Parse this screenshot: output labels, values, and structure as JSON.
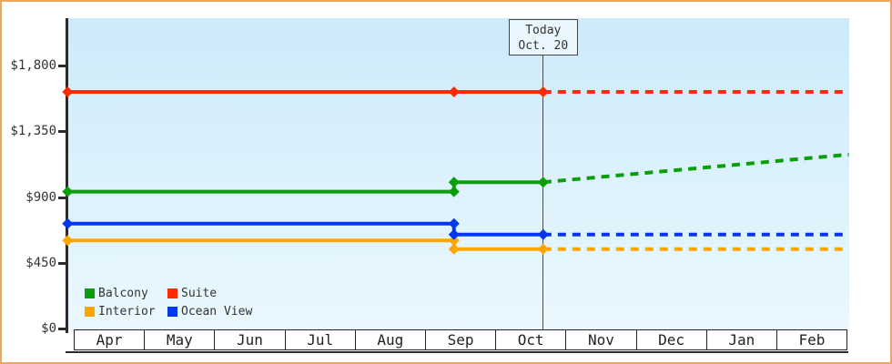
{
  "window": {
    "frame_color": "#eda55f",
    "background": "#ffffff"
  },
  "chart_data": {
    "type": "line",
    "title": "",
    "x_unit": "month_cell_index",
    "x_categories": [
      "Apr",
      "May",
      "Jun",
      "Jul",
      "Aug",
      "Sep",
      "Oct",
      "Nov",
      "Dec",
      "Jan",
      "Feb"
    ],
    "y_ticks": [
      {
        "value": 0,
        "label": "$0"
      },
      {
        "value": 450,
        "label": "$450"
      },
      {
        "value": 900,
        "label": "$900"
      },
      {
        "value": 1350,
        "label": "$1,350"
      },
      {
        "value": 1800,
        "label": "$1,800"
      }
    ],
    "ylim": [
      0,
      2130
    ],
    "grid": "off",
    "plot_background": {
      "top": "#cdeafa",
      "bottom": "#eaf8fe"
    },
    "today_annotation": {
      "line1": "Today",
      "line2": "Oct. 20",
      "month_index": 6,
      "month_fraction": 0.67
    },
    "forecast_style": "dashed-after-today",
    "series": [
      {
        "name": "Balcony",
        "color": "#0a9e0a",
        "solid": [
          [
            -0.1,
            940
          ],
          [
            5.4,
            940
          ],
          [
            5.4,
            1005
          ],
          [
            6.67,
            1005
          ]
        ],
        "dashed": [
          [
            6.67,
            1005
          ],
          [
            11.02,
            1195
          ]
        ],
        "markers": [
          [
            -0.1,
            940
          ],
          [
            5.4,
            940
          ],
          [
            5.4,
            1005
          ],
          [
            6.67,
            1005
          ]
        ]
      },
      {
        "name": "Suite",
        "color": "#ff2b00",
        "solid": [
          [
            -0.1,
            1625
          ],
          [
            6.67,
            1625
          ]
        ],
        "dashed": [
          [
            6.67,
            1625
          ],
          [
            11.02,
            1625
          ]
        ],
        "markers": [
          [
            -0.1,
            1625
          ],
          [
            5.4,
            1625
          ],
          [
            6.67,
            1625
          ]
        ]
      },
      {
        "name": "Interior",
        "color": "#ffa500",
        "solid": [
          [
            -0.1,
            605
          ],
          [
            5.4,
            605
          ],
          [
            5.4,
            545
          ],
          [
            6.67,
            545
          ]
        ],
        "dashed": [
          [
            6.67,
            545
          ],
          [
            11.02,
            545
          ]
        ],
        "markers": [
          [
            -0.1,
            605
          ],
          [
            5.4,
            605
          ],
          [
            5.4,
            545
          ],
          [
            6.67,
            545
          ]
        ]
      },
      {
        "name": "Ocean View",
        "color": "#0437f0",
        "solid": [
          [
            -0.1,
            720
          ],
          [
            5.4,
            720
          ],
          [
            5.4,
            645
          ],
          [
            6.67,
            645
          ]
        ],
        "dashed": [
          [
            6.67,
            645
          ],
          [
            11.02,
            645
          ]
        ],
        "markers": [
          [
            -0.1,
            720
          ],
          [
            5.4,
            720
          ],
          [
            5.4,
            645
          ],
          [
            6.67,
            645
          ]
        ]
      }
    ],
    "legend": {
      "position": "bottom-left-inside",
      "items": [
        {
          "label": "Balcony",
          "color": "#0a9e0a"
        },
        {
          "label": "Suite",
          "color": "#ff2b00"
        },
        {
          "label": "Interior",
          "color": "#ffa500"
        },
        {
          "label": "Ocean View",
          "color": "#0437f0"
        }
      ]
    }
  }
}
